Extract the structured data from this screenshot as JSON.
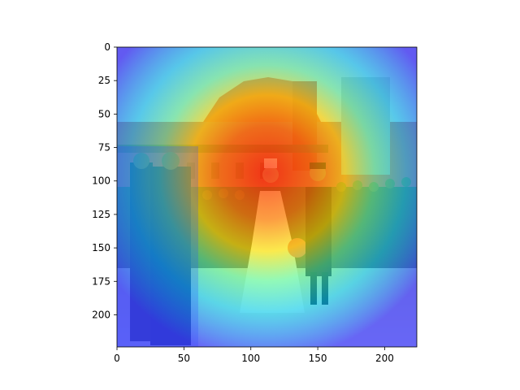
{
  "figure": {
    "image_width": 224,
    "image_height": 224,
    "xlim": [
      0,
      224
    ],
    "ylim": [
      224,
      0
    ],
    "overlay": "heatmap-jet"
  },
  "axes": {
    "x_ticks": [
      {
        "value": 0,
        "label": "0"
      },
      {
        "value": 50,
        "label": "50"
      },
      {
        "value": 100,
        "label": "100"
      },
      {
        "value": 150,
        "label": "150"
      },
      {
        "value": 200,
        "label": "200"
      }
    ],
    "y_ticks": [
      {
        "value": 0,
        "label": "0"
      },
      {
        "value": 25,
        "label": "25"
      },
      {
        "value": 50,
        "label": "50"
      },
      {
        "value": 75,
        "label": "75"
      },
      {
        "value": 100,
        "label": "100"
      },
      {
        "value": 125,
        "label": "125"
      },
      {
        "value": 150,
        "label": "150"
      },
      {
        "value": 175,
        "label": "175"
      },
      {
        "value": 200,
        "label": "200"
      }
    ]
  },
  "colors": {
    "heat_low": "#3a3aff",
    "heat_mid": "#00e0ff",
    "heat_high": "#ff2a00",
    "hot_yellow": "#ffe600",
    "building_red": "#e03040",
    "ground": "#e9e4c9"
  }
}
